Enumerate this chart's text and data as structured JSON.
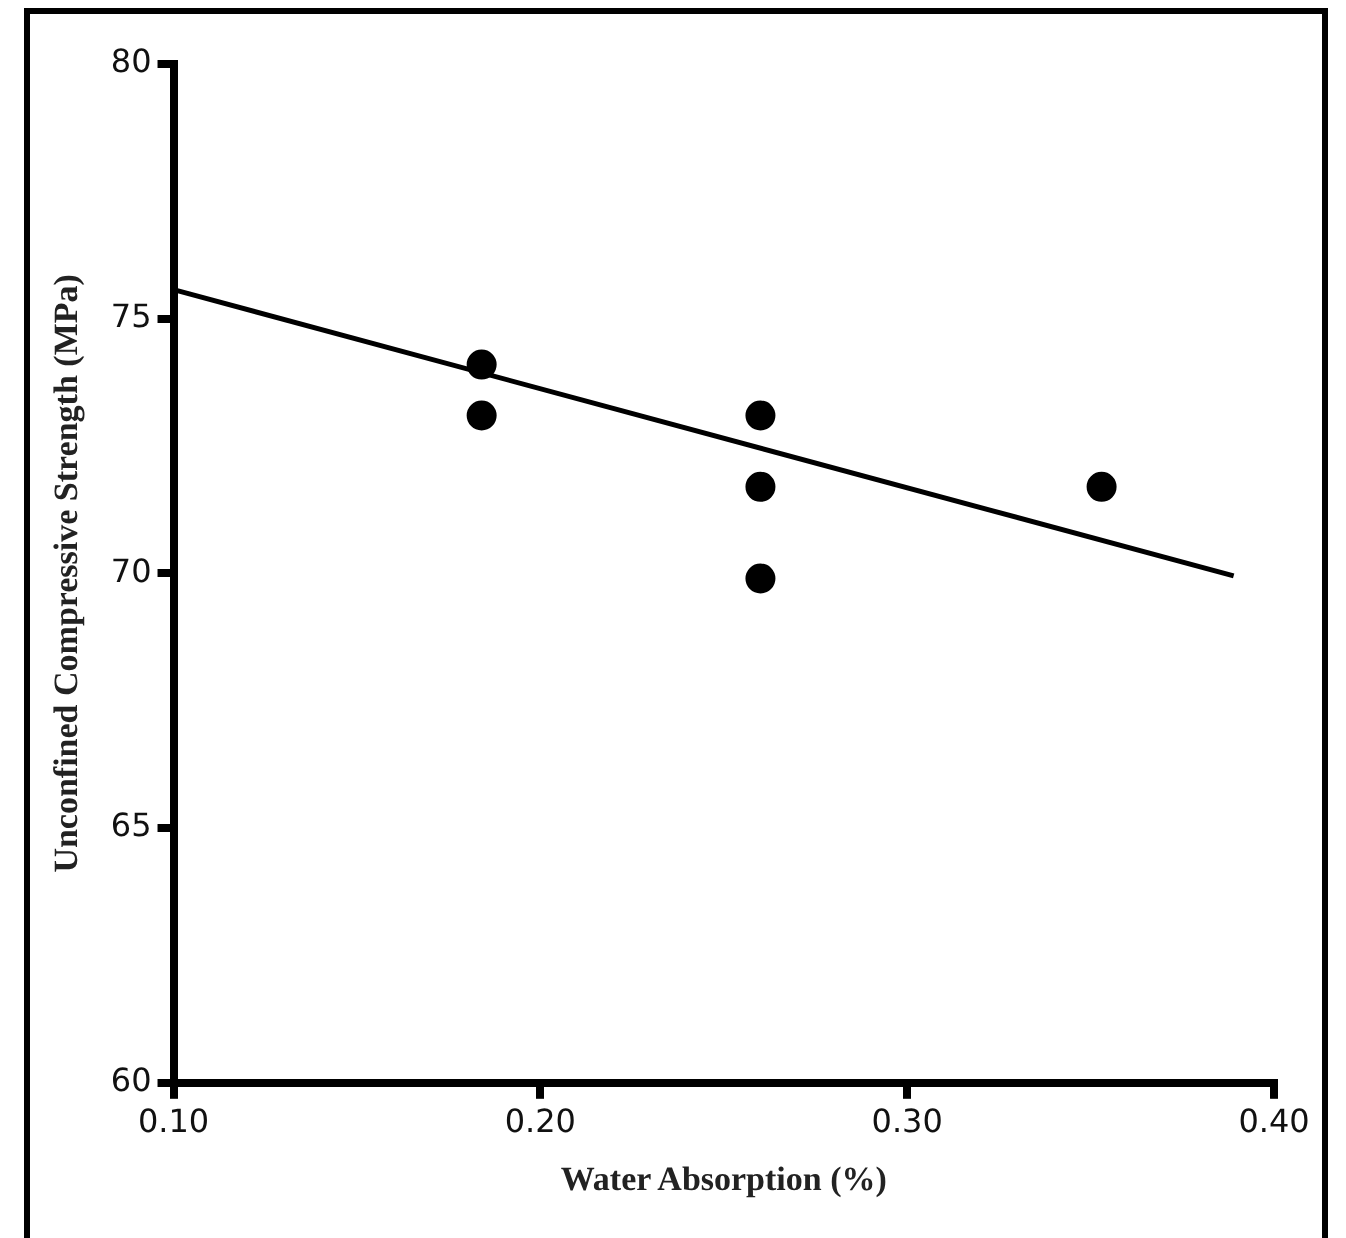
{
  "chart_data": {
    "type": "scatter",
    "xlabel": "Water Absorption (%)",
    "ylabel": "Unconfined Compressive Strength (MPa)",
    "xlim": [
      0.1,
      0.4
    ],
    "xticks": [
      {
        "value": 0.1,
        "label": "0.10"
      },
      {
        "value": 0.2,
        "label": "0.20"
      },
      {
        "value": 0.3,
        "label": "0.30"
      },
      {
        "value": 0.4,
        "label": "0.40"
      }
    ],
    "ylim": [
      60,
      80
    ],
    "yticks": [
      60,
      65,
      70,
      75,
      80
    ],
    "grid": false,
    "legend": false,
    "marker": "circle",
    "series": [
      {
        "color": "#000000",
        "x": [
          0.184,
          0.184,
          0.26,
          0.26,
          0.26,
          0.353
        ],
        "values": [
          74.1,
          73.1,
          73.1,
          71.7,
          69.9,
          71.7
        ]
      },
      {
        "type": "line",
        "color": "#000000",
        "marker": "none",
        "x": [
          0.1,
          0.389
        ],
        "values": [
          75.57,
          69.95
        ]
      }
    ]
  }
}
